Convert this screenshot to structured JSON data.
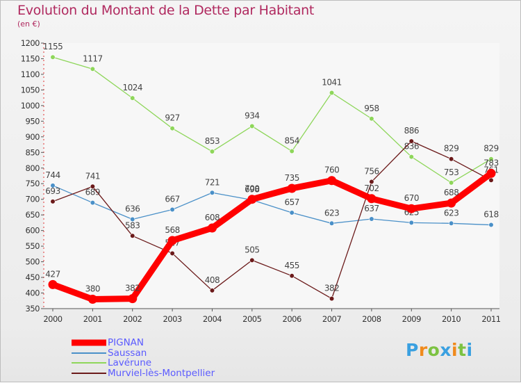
{
  "chart_data": {
    "type": "line",
    "title": "Evolution du Montant de la Dette par Habitant",
    "subtitle": "(en €)",
    "x": [
      "2000",
      "2001",
      "2002",
      "2003",
      "2004",
      "2005",
      "2006",
      "2007",
      "2008",
      "2009",
      "2010",
      "2011"
    ],
    "ylim": [
      350,
      1200
    ],
    "yticks": [
      350,
      400,
      450,
      500,
      550,
      600,
      650,
      700,
      750,
      800,
      850,
      900,
      950,
      1000,
      1050,
      1100,
      1150,
      1200
    ],
    "grid": false,
    "legend_position": "bottom-left",
    "series": [
      {
        "name": "Saussan",
        "color": "#4a90c8",
        "values": [
          744,
          689,
          636,
          667,
          721,
          698,
          657,
          623,
          637,
          625,
          623,
          618
        ],
        "labels": [
          "744",
          "689",
          "636",
          "667",
          "721",
          "698",
          "657",
          "623",
          "637",
          "625",
          "623",
          "618"
        ]
      },
      {
        "name": "Lavérune",
        "color": "#8ed65a",
        "values": [
          1155,
          1117,
          1024,
          927,
          853,
          934,
          854,
          1041,
          958,
          836,
          753,
          829
        ],
        "labels": [
          "1155",
          "1117",
          "1024",
          "927",
          "853",
          "934",
          "854",
          "1041",
          "958",
          "836",
          "753",
          "829"
        ]
      },
      {
        "name": "Murviel-lès-Montpellier",
        "color": "#6b1a1a",
        "values": [
          693,
          741,
          583,
          527,
          408,
          505,
          455,
          382,
          756,
          886,
          829,
          761
        ],
        "labels": [
          "693",
          "741",
          "583",
          "527",
          "408",
          "505",
          "455",
          "382",
          "756",
          "886",
          "829",
          "761"
        ]
      },
      {
        "name": "PIGNAN",
        "color": "#ff0000",
        "values": [
          427,
          380,
          382,
          568,
          608,
          700,
          735,
          760,
          702,
          670,
          688,
          783
        ],
        "labels": [
          "427",
          "380",
          "382",
          "568",
          "608",
          "700",
          "735",
          "760",
          "702",
          "670",
          "688",
          "783"
        ]
      }
    ]
  },
  "legend": {
    "items": [
      {
        "name": "PIGNAN",
        "color": "#ff0000"
      },
      {
        "name": "Saussan",
        "color": "#4a90c8"
      },
      {
        "name": "Lavérune",
        "color": "#8ed65a"
      },
      {
        "name": "Murviel-lès-Montpellier",
        "color": "#6b1a1a"
      }
    ]
  },
  "brand": {
    "letters": [
      {
        "char": "P",
        "color": "#3aa0e0"
      },
      {
        "char": "r",
        "color": "#f08a1c"
      },
      {
        "char": "o",
        "color": "#7cc242"
      },
      {
        "char": "x",
        "color": "#3aa0e0"
      },
      {
        "char": "i",
        "color": "#f08a1c"
      },
      {
        "char": "t",
        "color": "#7cc242"
      },
      {
        "char": "i",
        "color": "#3aa0e0"
      }
    ]
  }
}
